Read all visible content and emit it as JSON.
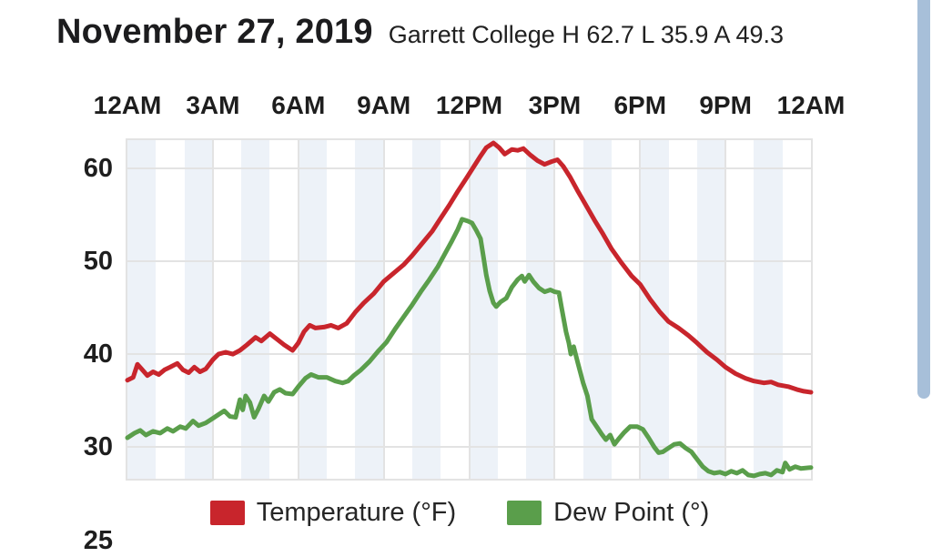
{
  "header": {
    "date_title": "November 27, 2019",
    "station_summary": "Garrett College H 62.7 L 35.9 A 49.3"
  },
  "ui": {
    "scrollbar_color": "#a7bfd9",
    "band_color": "#edf2f8",
    "grid_color": "#e3e3e3",
    "text_color": "#1e1e1e"
  },
  "chart_data": {
    "type": "line",
    "title": "November 27, 2019",
    "station": "Garrett College",
    "summary": {
      "high": 62.7,
      "low": 35.9,
      "average": 49.3
    },
    "x_axis": {
      "position": "top",
      "tick_labels": [
        "12AM",
        "3AM",
        "6AM",
        "9AM",
        "12PM",
        "3PM",
        "6PM",
        "9PM",
        "12AM"
      ],
      "tick_hours": [
        0,
        3,
        6,
        9,
        12,
        15,
        18,
        21,
        24
      ],
      "hours_span": 24
    },
    "y_axis": {
      "tick_labels": [
        "60",
        "50",
        "40",
        "30"
      ],
      "tick_values": [
        60,
        50,
        40,
        30
      ],
      "clipped_bottom_label": "25",
      "range_visible": [
        26.6,
        63.0
      ]
    },
    "grid": true,
    "band_interval_hours": 1,
    "legend_position": "bottom",
    "series": [
      {
        "key": "temperature",
        "name": "Temperature (°F)",
        "color": "#c8252c",
        "points": [
          [
            0,
            37.2
          ],
          [
            0.2,
            37.5
          ],
          [
            0.35,
            38.9
          ],
          [
            0.5,
            38.4
          ],
          [
            0.7,
            37.7
          ],
          [
            0.9,
            38.1
          ],
          [
            1.1,
            37.8
          ],
          [
            1.3,
            38.3
          ],
          [
            1.5,
            38.6
          ],
          [
            1.75,
            39.0
          ],
          [
            1.95,
            38.3
          ],
          [
            2.15,
            38.0
          ],
          [
            2.35,
            38.6
          ],
          [
            2.55,
            38.1
          ],
          [
            2.75,
            38.4
          ],
          [
            3.0,
            39.4
          ],
          [
            3.2,
            40.0
          ],
          [
            3.45,
            40.2
          ],
          [
            3.7,
            40.0
          ],
          [
            3.95,
            40.4
          ],
          [
            4.2,
            41.0
          ],
          [
            4.5,
            41.8
          ],
          [
            4.7,
            41.4
          ],
          [
            5.0,
            42.2
          ],
          [
            5.25,
            41.6
          ],
          [
            5.5,
            41.0
          ],
          [
            5.8,
            40.4
          ],
          [
            6.0,
            41.2
          ],
          [
            6.2,
            42.4
          ],
          [
            6.4,
            43.1
          ],
          [
            6.6,
            42.8
          ],
          [
            6.9,
            42.9
          ],
          [
            7.15,
            43.1
          ],
          [
            7.4,
            42.8
          ],
          [
            7.7,
            43.3
          ],
          [
            8.0,
            44.5
          ],
          [
            8.3,
            45.5
          ],
          [
            8.65,
            46.5
          ],
          [
            9.0,
            47.8
          ],
          [
            9.35,
            48.7
          ],
          [
            9.7,
            49.6
          ],
          [
            10.0,
            50.6
          ],
          [
            10.35,
            51.9
          ],
          [
            10.7,
            53.2
          ],
          [
            11.0,
            54.6
          ],
          [
            11.3,
            56.0
          ],
          [
            11.6,
            57.5
          ],
          [
            11.9,
            58.9
          ],
          [
            12.15,
            60.1
          ],
          [
            12.4,
            61.3
          ],
          [
            12.6,
            62.2
          ],
          [
            12.85,
            62.7
          ],
          [
            13.05,
            62.2
          ],
          [
            13.25,
            61.5
          ],
          [
            13.5,
            62.0
          ],
          [
            13.7,
            61.9
          ],
          [
            13.9,
            62.1
          ],
          [
            14.15,
            61.4
          ],
          [
            14.4,
            60.8
          ],
          [
            14.65,
            60.4
          ],
          [
            14.9,
            60.7
          ],
          [
            15.1,
            60.9
          ],
          [
            15.3,
            60.2
          ],
          [
            15.55,
            59.0
          ],
          [
            15.8,
            57.6
          ],
          [
            16.1,
            56.0
          ],
          [
            16.4,
            54.4
          ],
          [
            16.7,
            52.9
          ],
          [
            17.0,
            51.3
          ],
          [
            17.35,
            49.8
          ],
          [
            17.7,
            48.4
          ],
          [
            18.0,
            47.5
          ],
          [
            18.35,
            45.9
          ],
          [
            18.7,
            44.5
          ],
          [
            19.0,
            43.5
          ],
          [
            19.35,
            42.8
          ],
          [
            19.7,
            42.0
          ],
          [
            20.0,
            41.2
          ],
          [
            20.35,
            40.2
          ],
          [
            20.7,
            39.4
          ],
          [
            21.0,
            38.6
          ],
          [
            21.35,
            37.9
          ],
          [
            21.7,
            37.4
          ],
          [
            22.0,
            37.1
          ],
          [
            22.35,
            36.9
          ],
          [
            22.6,
            37.0
          ],
          [
            22.85,
            36.7
          ],
          [
            23.2,
            36.5
          ],
          [
            23.5,
            36.2
          ],
          [
            23.75,
            36.0
          ],
          [
            24,
            35.9
          ]
        ]
      },
      {
        "key": "dew-point",
        "name": "Dew Point (°)",
        "color": "#5a9e4b",
        "points": [
          [
            0,
            31.0
          ],
          [
            0.25,
            31.5
          ],
          [
            0.45,
            31.8
          ],
          [
            0.65,
            31.3
          ],
          [
            0.9,
            31.7
          ],
          [
            1.15,
            31.5
          ],
          [
            1.4,
            32.0
          ],
          [
            1.6,
            31.7
          ],
          [
            1.85,
            32.2
          ],
          [
            2.05,
            32.0
          ],
          [
            2.3,
            32.8
          ],
          [
            2.5,
            32.3
          ],
          [
            2.75,
            32.6
          ],
          [
            3.0,
            33.1
          ],
          [
            3.2,
            33.5
          ],
          [
            3.4,
            33.9
          ],
          [
            3.6,
            33.3
          ],
          [
            3.8,
            33.2
          ],
          [
            3.95,
            35.1
          ],
          [
            4.05,
            34.0
          ],
          [
            4.15,
            35.5
          ],
          [
            4.3,
            34.8
          ],
          [
            4.45,
            33.2
          ],
          [
            4.6,
            34.1
          ],
          [
            4.8,
            35.5
          ],
          [
            4.95,
            34.9
          ],
          [
            5.15,
            35.9
          ],
          [
            5.35,
            36.2
          ],
          [
            5.55,
            35.8
          ],
          [
            5.8,
            35.7
          ],
          [
            6.0,
            36.5
          ],
          [
            6.25,
            37.4
          ],
          [
            6.45,
            37.8
          ],
          [
            6.7,
            37.5
          ],
          [
            7.0,
            37.5
          ],
          [
            7.3,
            37.1
          ],
          [
            7.55,
            36.9
          ],
          [
            7.75,
            37.1
          ],
          [
            7.95,
            37.7
          ],
          [
            8.2,
            38.3
          ],
          [
            8.5,
            39.2
          ],
          [
            8.8,
            40.3
          ],
          [
            9.1,
            41.3
          ],
          [
            9.4,
            42.7
          ],
          [
            9.7,
            44.0
          ],
          [
            10.0,
            45.3
          ],
          [
            10.3,
            46.7
          ],
          [
            10.6,
            48.0
          ],
          [
            10.9,
            49.4
          ],
          [
            11.15,
            50.8
          ],
          [
            11.4,
            52.2
          ],
          [
            11.6,
            53.4
          ],
          [
            11.75,
            54.5
          ],
          [
            11.95,
            54.3
          ],
          [
            12.1,
            54.1
          ],
          [
            12.25,
            53.3
          ],
          [
            12.4,
            52.4
          ],
          [
            12.5,
            50.5
          ],
          [
            12.6,
            48.5
          ],
          [
            12.72,
            46.8
          ],
          [
            12.85,
            45.5
          ],
          [
            12.95,
            45.1
          ],
          [
            13.1,
            45.6
          ],
          [
            13.3,
            46.0
          ],
          [
            13.5,
            47.2
          ],
          [
            13.7,
            48.0
          ],
          [
            13.85,
            48.4
          ],
          [
            13.95,
            47.8
          ],
          [
            14.1,
            48.5
          ],
          [
            14.25,
            47.8
          ],
          [
            14.45,
            47.1
          ],
          [
            14.65,
            46.7
          ],
          [
            14.85,
            46.9
          ],
          [
            15.0,
            46.7
          ],
          [
            15.15,
            46.6
          ],
          [
            15.25,
            44.9
          ],
          [
            15.4,
            42.4
          ],
          [
            15.5,
            41.2
          ],
          [
            15.57,
            40.0
          ],
          [
            15.67,
            40.8
          ],
          [
            15.82,
            39.0
          ],
          [
            16.0,
            36.9
          ],
          [
            16.15,
            35.5
          ],
          [
            16.3,
            33.0
          ],
          [
            16.5,
            32.1
          ],
          [
            16.65,
            31.4
          ],
          [
            16.8,
            30.8
          ],
          [
            16.95,
            31.3
          ],
          [
            17.1,
            30.3
          ],
          [
            17.25,
            30.9
          ],
          [
            17.45,
            31.6
          ],
          [
            17.65,
            32.2
          ],
          [
            17.9,
            32.2
          ],
          [
            18.1,
            31.9
          ],
          [
            18.3,
            31.0
          ],
          [
            18.5,
            30.0
          ],
          [
            18.65,
            29.4
          ],
          [
            18.8,
            29.5
          ],
          [
            19.0,
            29.9
          ],
          [
            19.2,
            30.3
          ],
          [
            19.4,
            30.4
          ],
          [
            19.6,
            29.9
          ],
          [
            19.8,
            29.5
          ],
          [
            20.0,
            28.7
          ],
          [
            20.2,
            27.9
          ],
          [
            20.4,
            27.4
          ],
          [
            20.6,
            27.2
          ],
          [
            20.8,
            27.3
          ],
          [
            21.0,
            27.1
          ],
          [
            21.2,
            27.4
          ],
          [
            21.4,
            27.2
          ],
          [
            21.6,
            27.5
          ],
          [
            21.8,
            27.0
          ],
          [
            22.0,
            26.9
          ],
          [
            22.2,
            27.1
          ],
          [
            22.4,
            27.2
          ],
          [
            22.6,
            27.0
          ],
          [
            22.8,
            27.5
          ],
          [
            23.0,
            27.3
          ],
          [
            23.1,
            28.3
          ],
          [
            23.25,
            27.6
          ],
          [
            23.45,
            27.9
          ],
          [
            23.65,
            27.7
          ],
          [
            24,
            27.8
          ]
        ]
      }
    ],
    "legend": {
      "entries": [
        {
          "label": "Temperature (°F)",
          "color": "#c8252c"
        },
        {
          "label": "Dew Point (°)",
          "color": "#5a9e4b"
        }
      ]
    }
  }
}
